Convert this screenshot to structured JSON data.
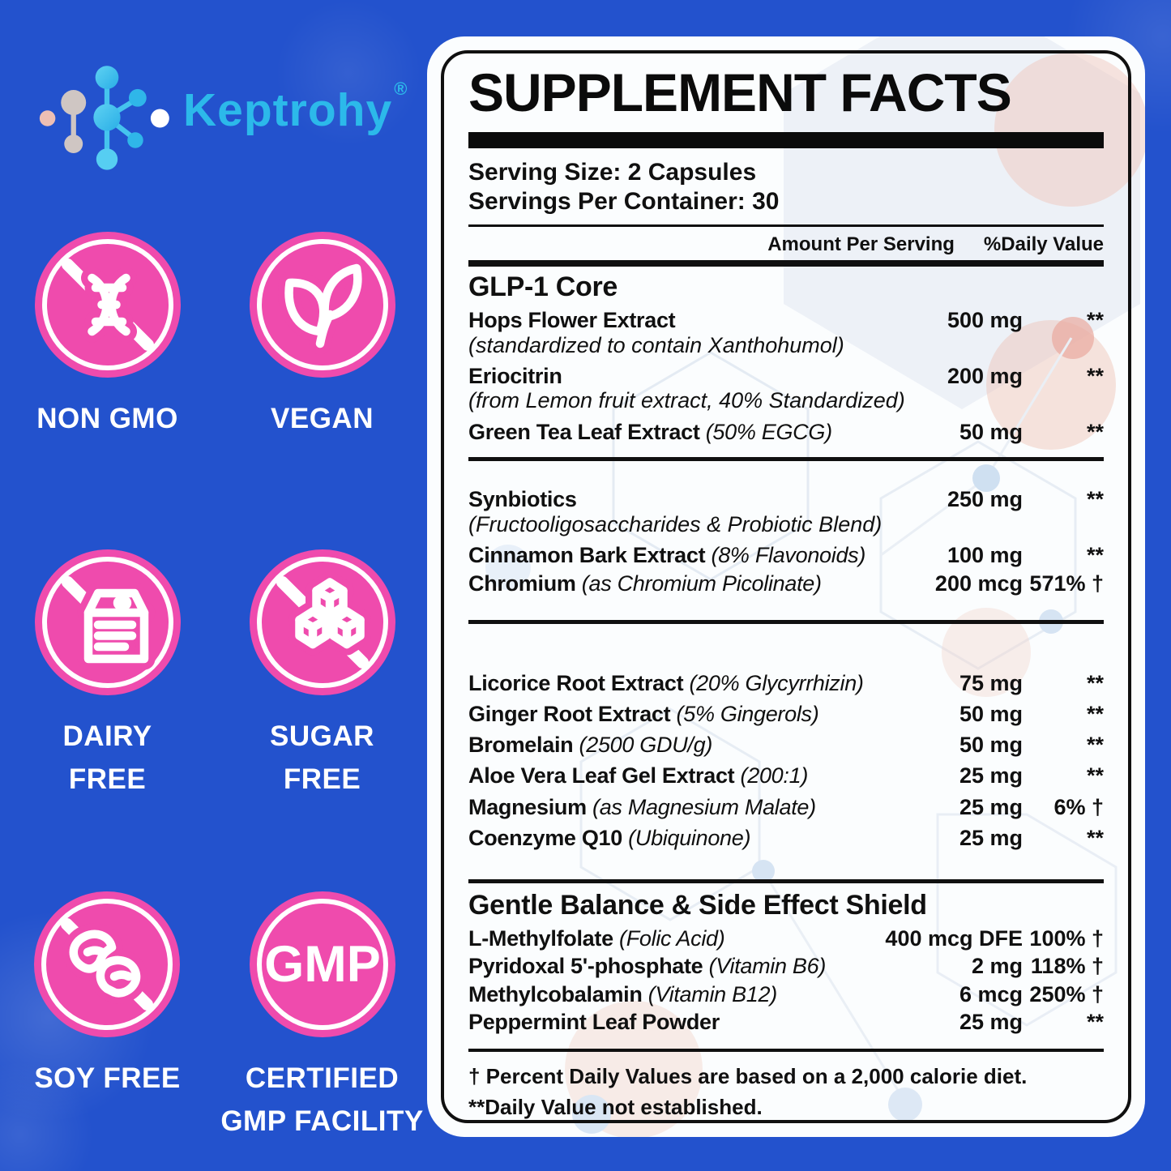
{
  "brand": {
    "name": "Keptrohy",
    "registered": "®"
  },
  "badges": [
    {
      "name": "non-gmo",
      "icon": "no-gmo-dna-icon",
      "lines": [
        "NON GMO"
      ]
    },
    {
      "name": "vegan",
      "icon": "vegan-leaves-icon",
      "lines": [
        "VEGAN"
      ]
    },
    {
      "name": "dairy-free",
      "icon": "no-dairy-icon",
      "lines": [
        "DAIRY",
        "FREE"
      ]
    },
    {
      "name": "sugar-free",
      "icon": "no-sugar-icon",
      "lines": [
        "SUGAR",
        "FREE"
      ]
    },
    {
      "name": "soy-free",
      "icon": "no-soy-icon",
      "lines": [
        "SOY FREE"
      ]
    },
    {
      "name": "gmp",
      "icon": "gmp-seal-icon",
      "lines": [
        "CERTIFIED",
        "GMP FACILITY"
      ]
    }
  ],
  "panel": {
    "title": "SUPPLEMENT FACTS",
    "serving_size": "Serving Size: 2 Capsules",
    "servings_per_container": "Servings Per Container: 30",
    "columns": {
      "amount": "Amount Per Serving",
      "daily_value": "%Daily Value"
    },
    "sections": [
      {
        "heading": "GLP-1 Core",
        "rows": [
          {
            "name": "Hops Flower Extract",
            "note": "",
            "subline": "(standardized to contain Xanthohumol)",
            "amount": "500 mg",
            "dv": "**"
          },
          {
            "name": "Eriocitrin",
            "note": "",
            "subline": "(from Lemon fruit extract, 40% Standardized)",
            "amount": "200 mg",
            "dv": "**"
          },
          {
            "name": "Green Tea Leaf Extract",
            "note": "(50% EGCG)",
            "amount": "50 mg",
            "dv": "**"
          }
        ]
      },
      {
        "heading": "",
        "rows": [
          {
            "name": "Synbiotics",
            "note": "",
            "subline": "(Fructooligosaccharides & Probiotic Blend)",
            "amount": "250 mg",
            "dv": "**"
          },
          {
            "name": "Cinnamon Bark Extract",
            "note": "(8% Flavonoids)",
            "amount": "100 mg",
            "dv": "**"
          },
          {
            "name": "Chromium",
            "note": "(as Chromium Picolinate)",
            "amount": "200 mcg",
            "dv": "571% †"
          }
        ]
      },
      {
        "heading": "",
        "rows": [
          {
            "name": "Licorice Root Extract",
            "note": "(20% Glycyrrhizin)",
            "amount": "75 mg",
            "dv": "**"
          },
          {
            "name": "Ginger Root Extract",
            "note": "(5% Gingerols)",
            "amount": "50 mg",
            "dv": "**"
          },
          {
            "name": "Bromelain",
            "note": "(2500 GDU/g)",
            "amount": "50 mg",
            "dv": "**"
          },
          {
            "name": "Aloe Vera Leaf Gel Extract",
            "note": "(200:1)",
            "amount": "25 mg",
            "dv": "**"
          },
          {
            "name": "Magnesium",
            "note": "(as Magnesium Malate)",
            "amount": "25 mg",
            "dv": "6% †"
          },
          {
            "name": "Coenzyme Q10",
            "note": "(Ubiquinone)",
            "amount": "25 mg",
            "dv": "**"
          }
        ]
      },
      {
        "heading": "Gentle Balance & Side Effect Shield",
        "rows": [
          {
            "name": "L-Methylfolate",
            "note": "(Folic Acid)",
            "amount": "400 mcg DFE",
            "dv": "100% †"
          },
          {
            "name": "Pyridoxal 5'-phosphate",
            "note": "(Vitamin B6)",
            "amount": "2 mg",
            "dv": "118% †"
          },
          {
            "name": "Methylcobalamin",
            "note": "(Vitamin B12)",
            "amount": "6 mcg",
            "dv": "250% †"
          },
          {
            "name": "Peppermint Leaf Powder",
            "note": "",
            "amount": "25 mg",
            "dv": "**"
          }
        ]
      }
    ],
    "footnotes": [
      "† Percent Daily Values are based on a 2,000 calorie diet.",
      "**Daily Value not established."
    ],
    "gmp_seal_text": "GMP"
  },
  "colors": {
    "background_blue": "#2352cd",
    "badge_pink": "#ef4bad",
    "logo_cyan": "#2cb9ea",
    "panel_black": "#0b0b0b"
  }
}
